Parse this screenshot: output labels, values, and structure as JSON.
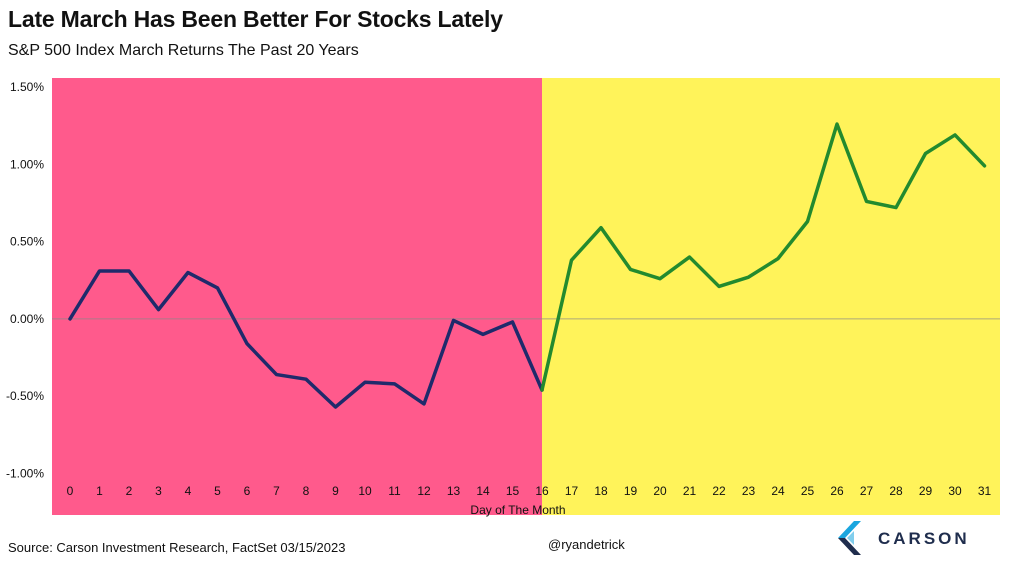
{
  "colors": {
    "first_half_bg": "#ff5a8c",
    "second_half_bg": "#fff35a",
    "first_half_line": "#1f2a6b",
    "second_half_line": "#238a2e",
    "zero_line": "#888888",
    "brand": "#1f2d4d",
    "brand_accent": "#1aa6df"
  },
  "footer": {
    "source": "Source: Carson Investment Research, FactSet 03/15/2023",
    "handle": "@ryandetrick",
    "brand": "CARSON"
  },
  "chart_data": {
    "type": "line",
    "title": "Late March Has Been Better For Stocks Lately",
    "subtitle": "S&P 500 Index March Returns The Past 20 Years",
    "xlabel": "Day of The Month",
    "ylabel": "",
    "x": [
      0,
      1,
      2,
      3,
      4,
      5,
      6,
      7,
      8,
      9,
      10,
      11,
      12,
      13,
      14,
      15,
      16,
      17,
      18,
      19,
      20,
      21,
      22,
      23,
      24,
      25,
      26,
      27,
      28,
      29,
      30,
      31
    ],
    "y": [
      0.0,
      0.31,
      0.31,
      0.06,
      0.3,
      0.2,
      -0.16,
      -0.36,
      -0.39,
      -0.57,
      -0.41,
      -0.42,
      -0.55,
      -0.01,
      -0.1,
      -0.02,
      -0.46,
      0.38,
      0.59,
      0.32,
      0.26,
      0.4,
      0.21,
      0.27,
      0.39,
      0.63,
      1.26,
      0.76,
      0.72,
      1.07,
      1.19,
      0.99
    ],
    "ylim": [
      -1.0,
      1.5
    ],
    "y_ticks": [
      1.5,
      1.0,
      0.5,
      0.0,
      -0.5,
      -1.0
    ],
    "y_tick_labels": [
      "1.50%",
      "1.00%",
      "0.50%",
      "0.00%",
      "-0.50%",
      "-1.00%"
    ],
    "x_tick_labels": [
      "0",
      "1",
      "2",
      "3",
      "4",
      "5",
      "6",
      "7",
      "8",
      "9",
      "10",
      "11",
      "12",
      "13",
      "14",
      "15",
      "16",
      "17",
      "18",
      "19",
      "20",
      "21",
      "22",
      "23",
      "24",
      "25",
      "26",
      "27",
      "28",
      "29",
      "30",
      "31"
    ],
    "split_day": 16,
    "grid": false,
    "legend": "none"
  }
}
